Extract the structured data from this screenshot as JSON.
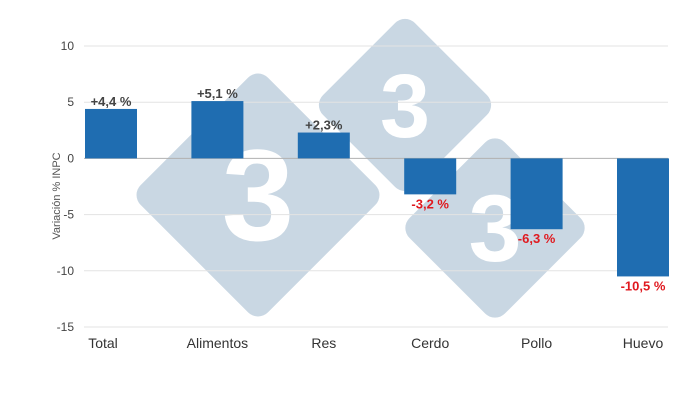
{
  "chart_data": {
    "type": "bar",
    "title": "",
    "xlabel": "",
    "ylabel": "Variación % INPC",
    "ylim": [
      -15,
      10
    ],
    "yticks": [
      10,
      5,
      0,
      -5,
      -10,
      -15
    ],
    "grid": true,
    "legend": "none",
    "categories": [
      "Total",
      "Alimentos",
      "Res",
      "Cerdo",
      "Pollo",
      "Huevo"
    ],
    "values": [
      4.4,
      5.1,
      2.3,
      -3.2,
      -6.3,
      -10.5
    ],
    "data_labels": [
      "+4,4 %",
      "+5,1 %",
      "+2,3%",
      "-3,2 %",
      "-6,3 %",
      "-10,5 %"
    ],
    "colors": {
      "bar": "#1f6db1",
      "label_positive": "#444444",
      "label_negative": "#e0191f",
      "grid": "#e3e3e3",
      "zero_line": "#b0b0b0"
    }
  },
  "watermark": {
    "glyph": "3",
    "color": "#c9d7e3"
  }
}
